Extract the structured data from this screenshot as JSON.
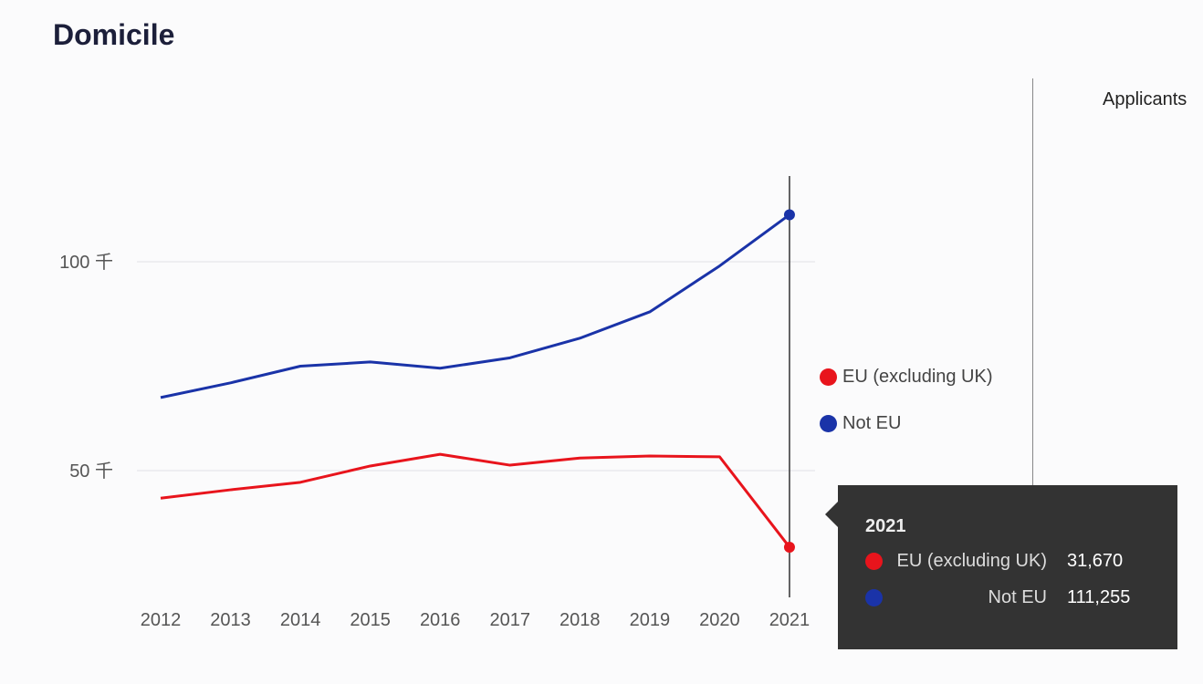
{
  "title": "Domicile",
  "side_label": "Applicants",
  "chart_data": {
    "type": "line",
    "x": [
      2012,
      2013,
      2014,
      2015,
      2016,
      2017,
      2018,
      2019,
      2020,
      2021
    ],
    "ylim": [
      0,
      120
    ],
    "yticks": [
      {
        "value": 50,
        "label": "50 千"
      },
      {
        "value": 100,
        "label": "100 千"
      }
    ],
    "grid": true,
    "legend_placement": "right",
    "series": [
      {
        "name": "EU (excluding UK)",
        "color": "#e8141c",
        "values": [
          43.4,
          45.4,
          47.2,
          51.1,
          53.9,
          51.3,
          53.0,
          53.5,
          53.3,
          31.67
        ]
      },
      {
        "name": "Not EU",
        "color": "#1a33a8",
        "values": [
          67.5,
          71.0,
          75.0,
          76.0,
          74.5,
          77.0,
          81.7,
          88.0,
          99.0,
          111.255
        ]
      }
    ]
  },
  "tooltip": {
    "year": "2021",
    "rows": [
      {
        "name": "EU (excluding UK)",
        "value": "31,670",
        "color": "#e8141c"
      },
      {
        "name": "Not EU",
        "value": "111,255",
        "color": "#1a33a8"
      }
    ]
  }
}
